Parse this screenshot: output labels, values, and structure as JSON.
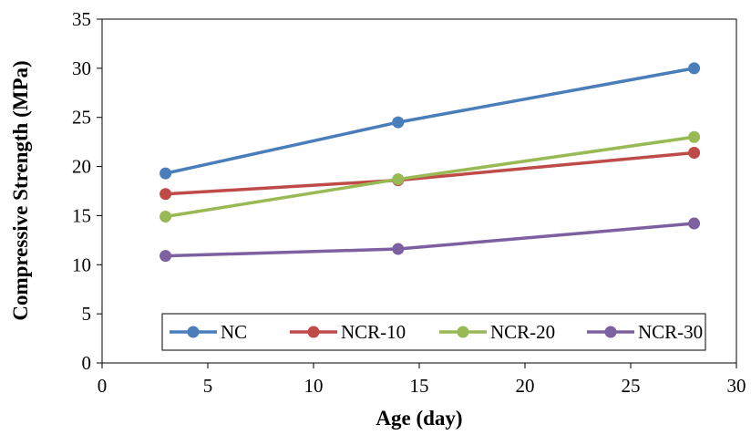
{
  "chart_data": {
    "type": "line",
    "title": "",
    "xlabel": "Age (day)",
    "ylabel": "Compressive Strength (MPa)",
    "xlim": [
      0,
      30
    ],
    "ylim": [
      0,
      35
    ],
    "xticks": [
      0,
      5,
      10,
      15,
      20,
      25,
      30
    ],
    "yticks": [
      0,
      5,
      10,
      15,
      20,
      25,
      30,
      35
    ],
    "grid": false,
    "legend_position": "bottom-inside",
    "x": [
      3,
      14,
      28
    ],
    "series": [
      {
        "name": "NC",
        "color": "#4a7ebb",
        "values": [
          19.3,
          24.5,
          30.0
        ]
      },
      {
        "name": "NCR-10",
        "color": "#be4b48",
        "values": [
          17.2,
          18.6,
          21.4
        ]
      },
      {
        "name": "NCR-20",
        "color": "#98b954",
        "values": [
          14.9,
          18.7,
          23.0
        ]
      },
      {
        "name": "NCR-30",
        "color": "#7d60a0",
        "values": [
          10.9,
          11.6,
          14.2
        ]
      }
    ]
  }
}
